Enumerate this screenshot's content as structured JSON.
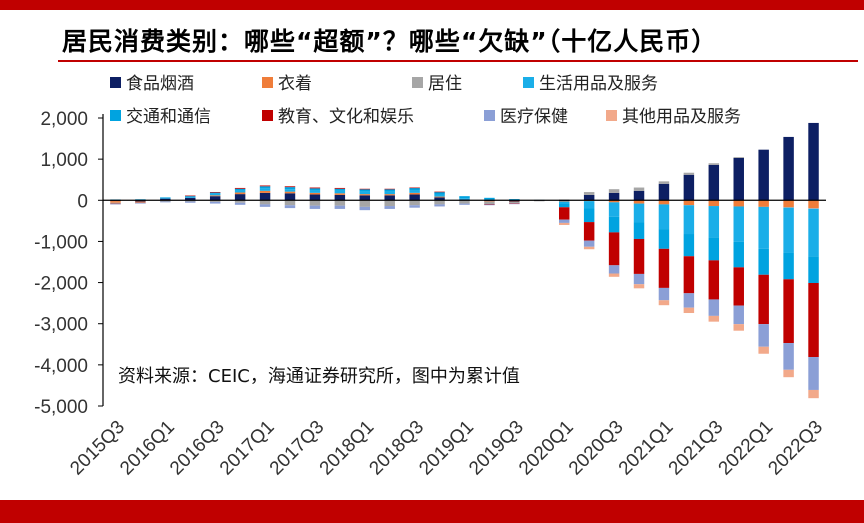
{
  "title": "居民消费类别：哪些“超额”？哪些“欠缺”（十亿人民币）",
  "source_note": "资料来源：CEIC，海通证券研究所，图中为累计值",
  "colors": {
    "brand": "#c00000",
    "axis": "#000000"
  },
  "chart_data": {
    "type": "bar",
    "stacked": true,
    "title": "居民消费类别：哪些“超额”？哪些“欠缺”（十亿人民币）",
    "xlabel": "",
    "ylabel": "",
    "ylim": [
      -5000,
      2000
    ],
    "yticks": [
      2000,
      1000,
      0,
      -1000,
      -2000,
      -3000,
      -4000,
      -5000
    ],
    "ytick_labels": [
      "2,000",
      "1,000",
      "0",
      "-1,000",
      "-2,000",
      "-3,000",
      "-4,000",
      "-5,000"
    ],
    "categories": [
      "2015Q3",
      "2015Q4",
      "2016Q1",
      "2016Q2",
      "2016Q3",
      "2016Q4",
      "2017Q1",
      "2017Q2",
      "2017Q3",
      "2017Q4",
      "2018Q1",
      "2018Q2",
      "2018Q3",
      "2018Q4",
      "2019Q1",
      "2019Q2",
      "2019Q3",
      "2019Q4",
      "2020Q1",
      "2020Q2",
      "2020Q3",
      "2020Q4",
      "2021Q1",
      "2021Q2",
      "2021Q3",
      "2021Q4",
      "2022Q1",
      "2022Q2",
      "2022Q3"
    ],
    "xtick_labels": [
      "2015Q3",
      "2016Q1",
      "2016Q3",
      "2017Q1",
      "2017Q3",
      "2018Q1",
      "2018Q3",
      "2019Q1",
      "2019Q3",
      "2020Q1",
      "2020Q3",
      "2021Q1",
      "2021Q3",
      "2022Q1",
      "2022Q3"
    ],
    "grid": false,
    "legend_position": "top-left",
    "series": [
      {
        "name": "食品烟酒",
        "color": "#0d1f63",
        "values": [
          -20,
          -30,
          40,
          60,
          100,
          150,
          180,
          170,
          140,
          130,
          120,
          120,
          140,
          70,
          20,
          -20,
          -30,
          -10,
          -20,
          130,
          180,
          230,
          400,
          620,
          860,
          1030,
          1230,
          1540,
          1880
        ]
      },
      {
        "name": "衣着",
        "color": "#ef7d3a",
        "values": [
          -40,
          -20,
          -10,
          0,
          20,
          40,
          50,
          40,
          40,
          40,
          30,
          30,
          40,
          20,
          0,
          -10,
          -10,
          0,
          -10,
          -20,
          -50,
          -80,
          -100,
          -120,
          -140,
          -150,
          -160,
          -170,
          -190
        ]
      },
      {
        "name": "居住",
        "color": "#a6a6a6",
        "values": [
          -20,
          -10,
          -20,
          -30,
          -40,
          -60,
          -100,
          -120,
          -130,
          -130,
          -160,
          -140,
          -120,
          -100,
          -80,
          -60,
          -30,
          -10,
          20,
          70,
          90,
          80,
          60,
          50,
          40,
          20,
          0,
          -10,
          -20
        ]
      },
      {
        "name": "生活用品及服务",
        "color": "#1aaee8",
        "values": [
          10,
          15,
          20,
          30,
          40,
          50,
          60,
          60,
          60,
          60,
          60,
          60,
          60,
          50,
          30,
          20,
          10,
          0,
          -60,
          -180,
          -350,
          -450,
          -600,
          -700,
          -760,
          -860,
          -1020,
          -1100,
          -1150
        ]
      },
      {
        "name": "交通和通信",
        "color": "#00a3e0",
        "values": [
          10,
          10,
          10,
          20,
          30,
          40,
          50,
          50,
          50,
          50,
          60,
          60,
          60,
          60,
          50,
          40,
          20,
          10,
          -80,
          -330,
          -380,
          -410,
          -480,
          -540,
          -560,
          -620,
          -630,
          -640,
          -650
        ]
      },
      {
        "name": "教育、文化和娱乐",
        "color": "#c00000",
        "values": [
          -5,
          -5,
          0,
          5,
          10,
          20,
          20,
          20,
          20,
          20,
          10,
          10,
          10,
          10,
          0,
          -10,
          -10,
          0,
          -300,
          -450,
          -800,
          -850,
          -950,
          -900,
          -950,
          -930,
          -1200,
          -1550,
          -1800
        ]
      },
      {
        "name": "医疗保健",
        "color": "#8b9fd6",
        "values": [
          -10,
          -10,
          -20,
          -30,
          -40,
          -50,
          -60,
          -70,
          -80,
          -80,
          -80,
          -70,
          -60,
          -50,
          -30,
          -20,
          -10,
          0,
          -80,
          -150,
          -200,
          -250,
          -300,
          -350,
          -400,
          -450,
          -550,
          -650,
          -800
        ]
      },
      {
        "name": "其他用品及服务",
        "color": "#f2a98a",
        "values": [
          0,
          0,
          0,
          0,
          0,
          0,
          0,
          0,
          0,
          0,
          0,
          0,
          0,
          0,
          0,
          0,
          0,
          0,
          -50,
          -60,
          -80,
          -100,
          -120,
          -130,
          -140,
          -160,
          -170,
          -180,
          -200
        ]
      }
    ]
  }
}
